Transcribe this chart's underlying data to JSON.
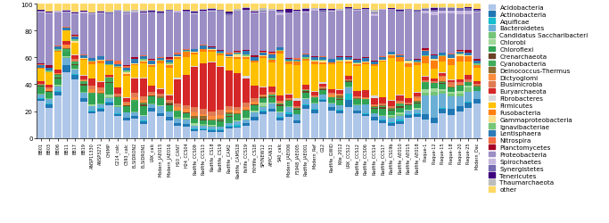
{
  "phyla": [
    "Acidobacteria",
    "Actinobacteria",
    "Aquificae",
    "Bacteroidetes",
    "Candidatus Saccharibacteri",
    "Chlorobi",
    "Chloroflexi",
    "Crenarchaeota",
    "Cyanobacteria",
    "Deinococcus-Thermus",
    "Dictyoglomi",
    "Elusimicrobia",
    "Euryarchaeota",
    "Fibrobacteres",
    "Firmicutes",
    "Fusobacteria",
    "Gammaproteobacteria",
    "Ignavibacteriae",
    "Lentisphaera",
    "Nitrospira",
    "Planctomycetes",
    "Proteobacteria",
    "Spirochaetes",
    "Synergistetes",
    "Tenericutes",
    "Thaumarchaeota",
    "other"
  ],
  "phylum_colors": {
    "Acidobacteria": "#b3cde3",
    "Actinobacteria": "#1f78b4",
    "Aquificae": "#33a4c8",
    "Bacteroidetes": "#4393c3",
    "Candidatus Saccharibacteri": "#74c476",
    "Chlorobi": "#a1d99b",
    "Chloroflexi": "#31682c",
    "Crenarchaeota": "#6b4226",
    "Cyanobacteria": "#41ab5d",
    "Deinococcus-Thermus": "#8c6d31",
    "Dictyoglomi": "#e07b54",
    "Elusimicrobia": "#e8736b",
    "Euryarchaeota": "#c0392b",
    "Fibrobacteres": "#d9d9d9",
    "Firmicutes": "#fec44f",
    "Fusobacteria": "#fe9929",
    "Gammaproteobacteria": "#fee391",
    "Ignavibacteriae": "#78c679",
    "Lentisphaera": "#2171b5",
    "Nitrospira": "#f16913",
    "Planctomycetes": "#8c2d04",
    "Proteobacteria": "#9ecae1",
    "Spirochaetes": "#bcbddc",
    "Synergistetes": "#756bb1",
    "Tenericutes": "#3f007d",
    "Thaumarchaeota": "#bdbdbd",
    "other": "#c994c7"
  },
  "figsize": [
    6.83,
    2.51
  ],
  "dpi": 100,
  "ylim": [
    0,
    100
  ],
  "yticks": [
    0,
    20,
    40,
    60,
    80,
    100
  ],
  "legend_fontsize": 5.2,
  "tick_fontsize": 3.5,
  "background_color": "#ffffff",
  "bar_width": 0.85
}
